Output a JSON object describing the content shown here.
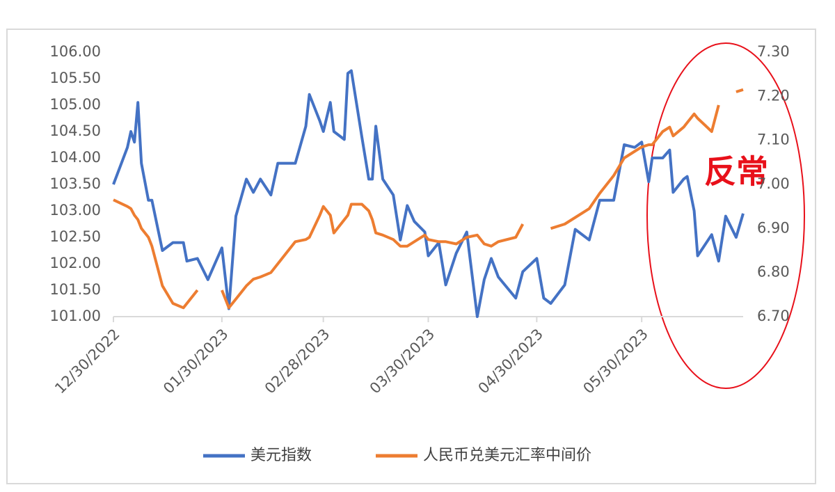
{
  "chart_data": {
    "type": "line",
    "x": [
      "12/30/2022",
      "01/03/2023",
      "01/04/2023",
      "01/05/2023",
      "01/06/2023",
      "01/07/2023",
      "01/09/2023",
      "01/10/2023",
      "01/13/2023",
      "01/16/2023",
      "01/19/2023",
      "01/20/2023",
      "01/23/2023",
      "01/26/2023",
      "01/28/2023",
      "01/30/2023",
      "02/01/2023",
      "02/03/2023",
      "02/06/2023",
      "02/08/2023",
      "02/10/2023",
      "02/13/2023",
      "02/15/2023",
      "02/20/2023",
      "02/23/2023",
      "02/24/2023",
      "02/27/2023",
      "02/28/2023",
      "03/02/2023",
      "03/03/2023",
      "03/06/2023",
      "03/07/2023",
      "03/08/2023",
      "03/11/2023",
      "03/13/2023",
      "03/14/2023",
      "03/15/2023",
      "03/17/2023",
      "03/20/2023",
      "03/22/2023",
      "03/24/2023",
      "03/26/2023",
      "03/29/2023",
      "03/30/2023",
      "04/02/2023",
      "04/04/2023",
      "04/07/2023",
      "04/10/2023",
      "04/13/2023",
      "04/15/2023",
      "04/17/2023",
      "04/19/2023",
      "04/24/2023",
      "04/26/2023",
      "04/30/2023",
      "05/02/2023",
      "05/04/2023",
      "05/08/2023",
      "05/11/2023",
      "05/15/2023",
      "05/18/2023",
      "05/22/2023",
      "05/25/2023",
      "05/28/2023",
      "05/30/2023",
      "06/01/2023",
      "06/02/2023",
      "06/05/2023",
      "06/07/2023",
      "06/08/2023",
      "06/11/2023",
      "06/12/2023",
      "06/14/2023",
      "06/15/2023",
      "06/19/2023",
      "06/21/2023",
      "06/23/2023",
      "06/26/2023",
      "06/28/2023"
    ],
    "xlim": [
      "12/30/2022",
      "06/28/2023"
    ],
    "xticks": [
      "12/30/2022",
      "01/30/2023",
      "02/28/2023",
      "03/30/2023",
      "04/30/2023",
      "05/30/2023"
    ],
    "series": [
      {
        "name": "美元指数",
        "color": "#4472c4",
        "axis": "y",
        "values": [
          103.5,
          104.2,
          104.5,
          104.3,
          105.05,
          103.9,
          103.2,
          103.2,
          102.25,
          102.4,
          102.4,
          102.05,
          102.1,
          101.7,
          102.0,
          102.3,
          101.15,
          102.9,
          103.6,
          103.35,
          103.6,
          103.3,
          103.9,
          103.9,
          104.6,
          105.2,
          104.7,
          104.5,
          105.05,
          104.5,
          104.35,
          105.6,
          105.65,
          104.4,
          103.6,
          103.6,
          104.6,
          103.6,
          103.3,
          102.45,
          103.1,
          102.8,
          102.6,
          102.15,
          102.4,
          101.6,
          102.2,
          102.6,
          101.0,
          101.7,
          102.1,
          101.75,
          101.35,
          101.85,
          102.1,
          101.35,
          101.25,
          101.6,
          102.65,
          102.45,
          103.2,
          103.2,
          104.25,
          104.2,
          104.3,
          103.55,
          104.0,
          104.0,
          104.15,
          103.35,
          103.6,
          103.65,
          103.0,
          102.15,
          102.55,
          102.05,
          102.9,
          102.5,
          102.95
        ]
      },
      {
        "name": "人民币兑美元汇率中间价",
        "color": "#ed7d31",
        "axis": "y2",
        "values": [
          6.965,
          6.95,
          6.945,
          6.93,
          6.92,
          6.9,
          6.88,
          6.86,
          6.77,
          6.73,
          6.72,
          6.73,
          6.76,
          null,
          null,
          6.76,
          6.72,
          6.74,
          6.77,
          6.785,
          6.79,
          6.8,
          6.82,
          6.87,
          6.875,
          6.88,
          6.93,
          6.95,
          6.93,
          6.89,
          6.92,
          6.93,
          6.955,
          6.955,
          6.94,
          6.92,
          6.89,
          6.885,
          6.875,
          6.86,
          6.86,
          6.87,
          6.885,
          6.875,
          6.87,
          6.87,
          6.865,
          6.88,
          6.885,
          6.865,
          6.86,
          6.87,
          6.88,
          6.91,
          null,
          null,
          6.9,
          6.91,
          6.925,
          6.945,
          6.98,
          7.02,
          7.06,
          7.075,
          7.085,
          7.09,
          7.09,
          7.12,
          7.13,
          7.11,
          7.13,
          7.14,
          7.16,
          7.15,
          7.12,
          7.18,
          null,
          7.21,
          7.215
        ]
      }
    ],
    "ylim": [
      101,
      106
    ],
    "yticks": [
      {
        "value": 101,
        "label": "101.00"
      },
      {
        "value": 101.5,
        "label": "101.50"
      },
      {
        "value": 102,
        "label": "102.00"
      },
      {
        "value": 102.5,
        "label": "102.50"
      },
      {
        "value": 103,
        "label": "103.00"
      },
      {
        "value": 103.5,
        "label": "103.50"
      },
      {
        "value": 104,
        "label": "104.00"
      },
      {
        "value": 104.5,
        "label": "104.50"
      },
      {
        "value": 105,
        "label": "105.00"
      },
      {
        "value": 105.5,
        "label": "105.50"
      },
      {
        "value": 106,
        "label": "106.00"
      }
    ],
    "y2lim": [
      6.7,
      7.3
    ],
    "y2ticks": [
      {
        "value": 6.7,
        "label": "6.70"
      },
      {
        "value": 6.8,
        "label": "6.80"
      },
      {
        "value": 6.9,
        "label": "6.90"
      },
      {
        "value": 7.0,
        "label": "7.00"
      },
      {
        "value": 7.1,
        "label": "7.10"
      },
      {
        "value": 7.2,
        "label": "7.20"
      },
      {
        "value": 7.3,
        "label": "7.30"
      }
    ],
    "annotation": "反常",
    "legend": "bottom"
  }
}
